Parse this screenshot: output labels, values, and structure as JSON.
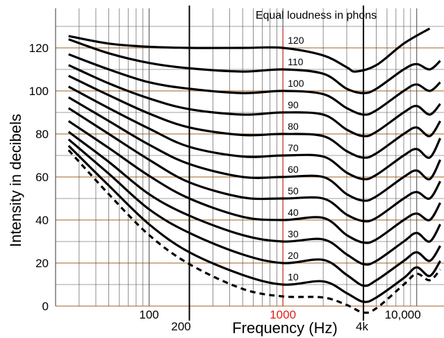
{
  "chart_data": {
    "type": "line",
    "title": "Equal loudness in phons",
    "xlabel": "Frequency (Hz)",
    "ylabel": "Intensity in decibels",
    "xscale": "log",
    "xlim": [
      20,
      16000
    ],
    "ylim": [
      0,
      130
    ],
    "yticks": [
      0,
      20,
      40,
      60,
      80,
      100,
      120
    ],
    "xtick_labels": [
      {
        "x": 100,
        "label": "100",
        "color": "#000000"
      },
      {
        "x": 1000,
        "label": "1000",
        "color": "#e0201a"
      },
      {
        "x": 10000,
        "label": "10,000",
        "color": "#000000"
      }
    ],
    "markers": [
      {
        "x": 200,
        "label": "200",
        "color": "#000000"
      },
      {
        "x": 1000,
        "label": "",
        "color": "#e0201a"
      },
      {
        "x": 4000,
        "label": "4k",
        "color": "#000000"
      }
    ],
    "grid": true,
    "grid_colors": {
      "horizontal_major": "#b08050",
      "minor": "#444444"
    },
    "series": [
      {
        "name": "120",
        "x": [
          25,
          50,
          100,
          200,
          500,
          1000,
          2000,
          3000,
          3500,
          5000,
          8000,
          12500
        ],
        "y": [
          125.5,
          122,
          120.5,
          120,
          120,
          120,
          116.5,
          111,
          109,
          112,
          122,
          129
        ]
      },
      {
        "name": "110",
        "x": [
          25,
          50,
          100,
          200,
          500,
          1000,
          2000,
          3000,
          4000,
          5000,
          8000,
          10000,
          12500,
          15000
        ],
        "y": [
          124,
          117.5,
          113,
          110.5,
          109,
          110,
          108,
          101,
          99,
          101,
          110,
          112.5,
          110,
          114
        ]
      },
      {
        "name": "100",
        "x": [
          25,
          50,
          100,
          200,
          500,
          1000,
          2000,
          3000,
          4000,
          5000,
          8000,
          10000,
          12500,
          15000
        ],
        "y": [
          117,
          110,
          104,
          101,
          99,
          100,
          98.5,
          92,
          89,
          91,
          100,
          103,
          100,
          104
        ]
      },
      {
        "name": "90",
        "x": [
          25,
          50,
          100,
          200,
          500,
          1000,
          2000,
          3000,
          4000,
          5000,
          8000,
          10000,
          12500,
          15000
        ],
        "y": [
          112,
          103.5,
          96.5,
          91.5,
          89,
          90,
          89,
          82,
          79,
          81,
          90,
          93,
          89,
          94
        ]
      },
      {
        "name": "80",
        "x": [
          25,
          50,
          100,
          200,
          500,
          1000,
          2000,
          3000,
          4000,
          5000,
          8000,
          10000,
          12500,
          15000
        ],
        "y": [
          107,
          98,
          89.5,
          83,
          79.5,
          80,
          79,
          72,
          69,
          71,
          80,
          83,
          79,
          86
        ]
      },
      {
        "name": "70",
        "x": [
          25,
          50,
          100,
          200,
          500,
          1000,
          2000,
          3000,
          4000,
          5000,
          8000,
          10000,
          12500,
          15000
        ],
        "y": [
          102,
          92,
          82.5,
          74,
          69.5,
          70,
          69.5,
          62,
          59,
          61,
          70,
          73,
          69,
          78
        ]
      },
      {
        "name": "60",
        "x": [
          25,
          50,
          100,
          200,
          500,
          1000,
          2000,
          3000,
          4000,
          5000,
          8000,
          10000,
          12500,
          15000
        ],
        "y": [
          97,
          86,
          75,
          66,
          60,
          60,
          60,
          52,
          49,
          51,
          60,
          63,
          59,
          68
        ]
      },
      {
        "name": "50",
        "x": [
          25,
          50,
          100,
          200,
          500,
          1000,
          2000,
          3000,
          4000,
          5000,
          8000,
          10000,
          12500,
          15000
        ],
        "y": [
          92,
          80,
          68,
          57.5,
          50.5,
          50,
          50,
          42.5,
          39.5,
          41,
          50,
          53,
          50,
          58
        ]
      },
      {
        "name": "40",
        "x": [
          25,
          50,
          100,
          200,
          500,
          1000,
          2000,
          3000,
          4000,
          5000,
          8000,
          10000,
          12500,
          15000
        ],
        "y": [
          86,
          73.5,
          60.5,
          50,
          41.5,
          40,
          41,
          33,
          29.5,
          31,
          40,
          43,
          40,
          48
        ]
      },
      {
        "name": "30",
        "x": [
          25,
          50,
          100,
          200,
          500,
          1000,
          2000,
          3000,
          4000,
          5000,
          8000,
          10000,
          12500,
          15000
        ],
        "y": [
          81,
          67,
          52,
          42,
          33,
          30,
          31,
          24,
          19.5,
          21,
          30,
          34,
          30,
          38
        ]
      },
      {
        "name": "20",
        "x": [
          25,
          50,
          100,
          200,
          500,
          1000,
          2000,
          3000,
          4000,
          5000,
          8000,
          10000,
          12500,
          15000
        ],
        "y": [
          77.5,
          61.5,
          45,
          34,
          24,
          20,
          21.5,
          14.5,
          9.5,
          12,
          21,
          25,
          21,
          28
        ]
      },
      {
        "name": "10",
        "x": [
          25,
          50,
          100,
          200,
          500,
          1000,
          2000,
          3000,
          4000,
          5000,
          8000,
          10000,
          12500,
          15000
        ],
        "y": [
          74.5,
          56,
          38,
          25,
          14.5,
          10,
          11.5,
          6,
          2,
          4,
          13,
          18,
          14,
          21
        ]
      },
      {
        "name": "",
        "style": "dashed",
        "x": [
          25,
          50,
          100,
          200,
          500,
          1000,
          2000,
          3000,
          4000,
          5000,
          8000,
          10000,
          12500,
          15000
        ],
        "y": [
          72.5,
          52,
          33,
          19.5,
          8,
          4.5,
          4,
          0.5,
          -3,
          -1,
          10,
          15,
          12,
          17
        ]
      }
    ]
  }
}
